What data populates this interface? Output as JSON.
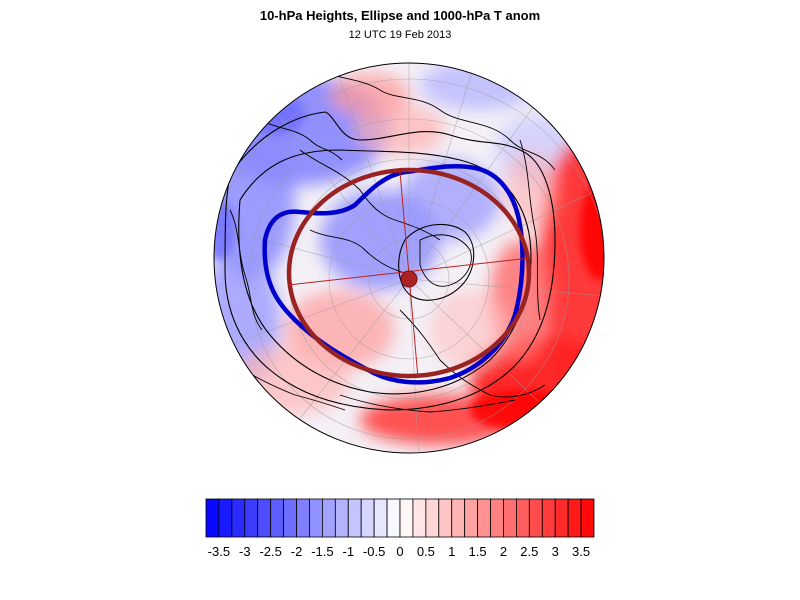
{
  "header": {
    "title": "10-hPa Heights, Ellipse and 1000-hPa T anom",
    "subtitle": "12 UTC 19 Feb 2013"
  },
  "colors": {
    "negative_max": "#0000ff",
    "neutral": "#ffffff",
    "positive_max": "#ff0000",
    "height_contour": "#0000cc",
    "ellipse": "#992222",
    "coastline": "#000000"
  },
  "colorbar": {
    "levels": [
      -3.75,
      -3.5,
      -3.25,
      -3,
      -2.75,
      -2.5,
      -2.25,
      -2,
      -1.75,
      -1.5,
      -1.25,
      -1,
      -0.75,
      -0.5,
      -0.25,
      0,
      0.25,
      0.5,
      0.75,
      1,
      1.25,
      1.5,
      1.75,
      2,
      2.25,
      2.5,
      2.75,
      3,
      3.25,
      3.5,
      3.75
    ],
    "ticks": [
      "-3.5",
      "-3",
      "-2.5",
      "-2",
      "-1.5",
      "-1",
      "-0.5",
      "0",
      "0.5",
      "1",
      "1.5",
      "2",
      "2.5",
      "3",
      "3.5"
    ],
    "tick_values": [
      -3.5,
      -3,
      -2.5,
      -2,
      -1.5,
      -1,
      -0.5,
      0,
      0.5,
      1,
      1.5,
      2,
      2.5,
      3,
      3.5
    ]
  }
}
